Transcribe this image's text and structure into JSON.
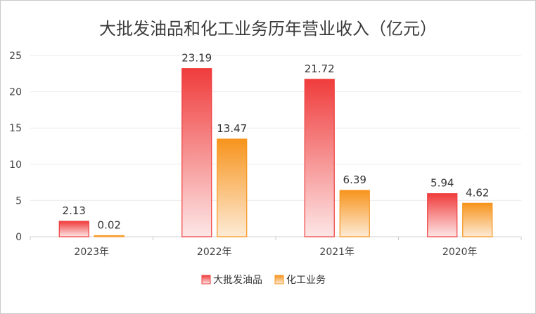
{
  "chart_data": {
    "type": "bar",
    "title": "大批发油品和化工业务历年营业收入（亿元）",
    "categories": [
      "2023年",
      "2022年",
      "2021年",
      "2020年"
    ],
    "series": [
      {
        "name": "大批发油品",
        "values": [
          2.13,
          23.19,
          21.72,
          5.94
        ],
        "value_labels": [
          "2.13",
          "23.19",
          "21.72",
          "5.94"
        ],
        "color": "#f03c3c"
      },
      {
        "name": "化工业务",
        "values": [
          0.02,
          13.47,
          6.39,
          4.62
        ],
        "value_labels": [
          "0.02",
          "13.47",
          "6.39",
          "4.62"
        ],
        "color": "#f7941d"
      }
    ],
    "y_ticks": [
      "0",
      "5",
      "10",
      "15",
      "20",
      "25"
    ],
    "ylim": [
      0,
      25
    ],
    "grid": true,
    "legend_position": "bottom"
  }
}
